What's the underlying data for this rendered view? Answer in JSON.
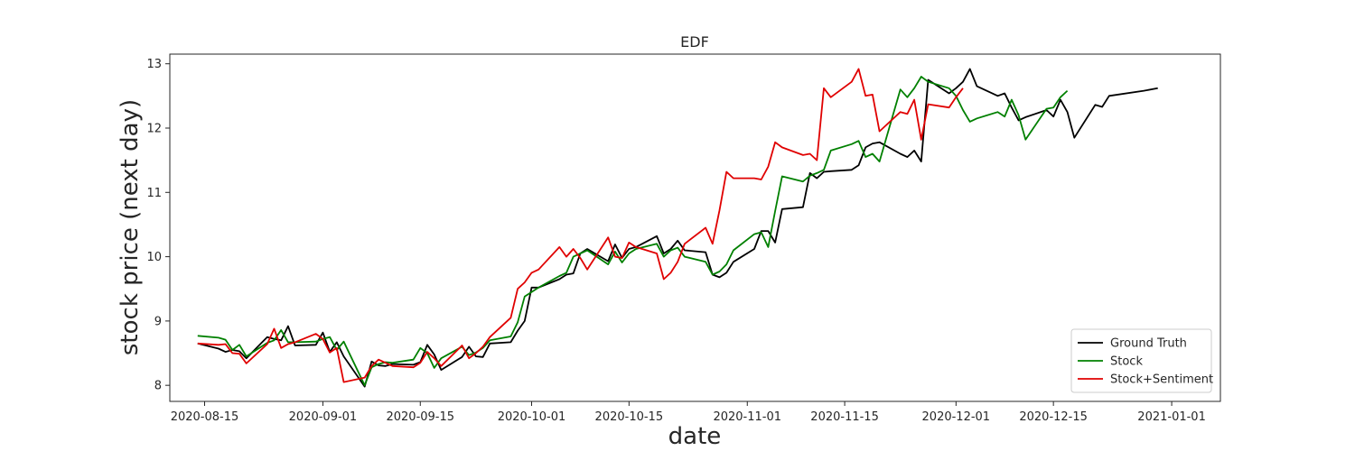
{
  "chart_data": {
    "type": "line",
    "title": "EDF",
    "xlabel": "date",
    "ylabel": "stock price (next day)",
    "xlim": [
      "2020-08-10",
      "2021-01-08"
    ],
    "ylim": [
      7.75,
      13.15
    ],
    "x_ticks": [
      "2020-08-15",
      "2020-09-01",
      "2020-09-15",
      "2020-10-01",
      "2020-10-15",
      "2020-11-01",
      "2020-11-15",
      "2020-12-01",
      "2020-12-15",
      "2021-01-01"
    ],
    "y_ticks": [
      8,
      9,
      10,
      11,
      12,
      13
    ],
    "grid": false,
    "legend_position": "bottom-right",
    "series": [
      {
        "name": "Ground Truth",
        "color": "#000000",
        "points": [
          [
            "2020-08-14",
            8.65
          ],
          [
            "2020-08-17",
            8.57
          ],
          [
            "2020-08-18",
            8.52
          ],
          [
            "2020-08-19",
            8.55
          ],
          [
            "2020-08-20",
            8.53
          ],
          [
            "2020-08-21",
            8.42
          ],
          [
            "2020-08-24",
            8.75
          ],
          [
            "2020-08-25",
            8.72
          ],
          [
            "2020-08-26",
            8.7
          ],
          [
            "2020-08-27",
            8.92
          ],
          [
            "2020-08-28",
            8.62
          ],
          [
            "2020-08-31",
            8.63
          ],
          [
            "2020-09-01",
            8.82
          ],
          [
            "2020-09-02",
            8.52
          ],
          [
            "2020-09-03",
            8.67
          ],
          [
            "2020-09-04",
            8.45
          ],
          [
            "2020-09-07",
            7.98
          ],
          [
            "2020-09-08",
            8.37
          ],
          [
            "2020-09-09",
            8.31
          ],
          [
            "2020-09-10",
            8.3
          ],
          [
            "2020-09-11",
            8.33
          ],
          [
            "2020-09-14",
            8.32
          ],
          [
            "2020-09-15",
            8.36
          ],
          [
            "2020-09-16",
            8.63
          ],
          [
            "2020-09-17",
            8.48
          ],
          [
            "2020-09-18",
            8.24
          ],
          [
            "2020-09-21",
            8.44
          ],
          [
            "2020-09-22",
            8.6
          ],
          [
            "2020-09-23",
            8.45
          ],
          [
            "2020-09-24",
            8.44
          ],
          [
            "2020-09-25",
            8.65
          ],
          [
            "2020-09-28",
            8.67
          ],
          [
            "2020-09-29",
            8.85
          ],
          [
            "2020-09-30",
            9.0
          ],
          [
            "2020-10-01",
            9.52
          ],
          [
            "2020-10-02",
            9.52
          ],
          [
            "2020-10-05",
            9.65
          ],
          [
            "2020-10-06",
            9.72
          ],
          [
            "2020-10-07",
            9.74
          ],
          [
            "2020-10-08",
            10.05
          ],
          [
            "2020-10-09",
            10.12
          ],
          [
            "2020-10-12",
            9.93
          ],
          [
            "2020-10-13",
            10.19
          ],
          [
            "2020-10-14",
            9.98
          ],
          [
            "2020-10-15",
            10.12
          ],
          [
            "2020-10-16",
            10.15
          ],
          [
            "2020-10-19",
            10.32
          ],
          [
            "2020-10-20",
            10.05
          ],
          [
            "2020-10-21",
            10.12
          ],
          [
            "2020-10-22",
            10.25
          ],
          [
            "2020-10-23",
            10.1
          ],
          [
            "2020-10-26",
            10.07
          ],
          [
            "2020-10-27",
            9.72
          ],
          [
            "2020-10-28",
            9.68
          ],
          [
            "2020-10-29",
            9.75
          ],
          [
            "2020-10-30",
            9.92
          ],
          [
            "2020-11-02",
            10.12
          ],
          [
            "2020-11-03",
            10.4
          ],
          [
            "2020-11-04",
            10.4
          ],
          [
            "2020-11-05",
            10.22
          ],
          [
            "2020-11-06",
            10.74
          ],
          [
            "2020-11-09",
            10.77
          ],
          [
            "2020-11-10",
            11.3
          ],
          [
            "2020-11-11",
            11.22
          ],
          [
            "2020-11-12",
            11.32
          ],
          [
            "2020-11-13",
            11.33
          ],
          [
            "2020-11-16",
            11.35
          ],
          [
            "2020-11-17",
            11.42
          ],
          [
            "2020-11-18",
            11.7
          ],
          [
            "2020-11-19",
            11.76
          ],
          [
            "2020-11-20",
            11.78
          ],
          [
            "2020-11-23",
            11.6
          ],
          [
            "2020-11-24",
            11.55
          ],
          [
            "2020-11-25",
            11.65
          ],
          [
            "2020-11-26",
            11.48
          ],
          [
            "2020-11-27",
            12.75
          ],
          [
            "2020-11-30",
            12.54
          ],
          [
            "2020-12-01",
            12.62
          ],
          [
            "2020-12-02",
            12.72
          ],
          [
            "2020-12-03",
            12.92
          ],
          [
            "2020-12-04",
            12.65
          ],
          [
            "2020-12-07",
            12.5
          ],
          [
            "2020-12-08",
            12.54
          ],
          [
            "2020-12-09",
            12.32
          ],
          [
            "2020-12-10",
            12.12
          ],
          [
            "2020-12-11",
            12.17
          ],
          [
            "2020-12-14",
            12.28
          ],
          [
            "2020-12-15",
            12.18
          ],
          [
            "2020-12-16",
            12.44
          ],
          [
            "2020-12-17",
            12.25
          ],
          [
            "2020-12-18",
            11.85
          ],
          [
            "2020-12-21",
            12.36
          ],
          [
            "2020-12-22",
            12.33
          ],
          [
            "2020-12-23",
            12.5
          ],
          [
            "2020-12-28",
            12.58
          ],
          [
            "2020-12-30",
            12.62
          ]
        ]
      },
      {
        "name": "Stock",
        "color": "#008000",
        "points": [
          [
            "2020-08-14",
            8.77
          ],
          [
            "2020-08-17",
            8.74
          ],
          [
            "2020-08-18",
            8.71
          ],
          [
            "2020-08-19",
            8.55
          ],
          [
            "2020-08-20",
            8.63
          ],
          [
            "2020-08-21",
            8.45
          ],
          [
            "2020-08-24",
            8.66
          ],
          [
            "2020-08-25",
            8.7
          ],
          [
            "2020-08-26",
            8.86
          ],
          [
            "2020-08-27",
            8.67
          ],
          [
            "2020-08-28",
            8.67
          ],
          [
            "2020-08-31",
            8.68
          ],
          [
            "2020-09-01",
            8.72
          ],
          [
            "2020-09-02",
            8.75
          ],
          [
            "2020-09-03",
            8.55
          ],
          [
            "2020-09-04",
            8.68
          ],
          [
            "2020-09-07",
            8.0
          ],
          [
            "2020-09-08",
            8.28
          ],
          [
            "2020-09-09",
            8.33
          ],
          [
            "2020-09-10",
            8.36
          ],
          [
            "2020-09-11",
            8.35
          ],
          [
            "2020-09-14",
            8.4
          ],
          [
            "2020-09-15",
            8.58
          ],
          [
            "2020-09-16",
            8.5
          ],
          [
            "2020-09-17",
            8.27
          ],
          [
            "2020-09-18",
            8.42
          ],
          [
            "2020-09-21",
            8.6
          ],
          [
            "2020-09-22",
            8.47
          ],
          [
            "2020-09-23",
            8.51
          ],
          [
            "2020-09-24",
            8.58
          ],
          [
            "2020-09-25",
            8.7
          ],
          [
            "2020-09-28",
            8.76
          ],
          [
            "2020-09-29",
            8.98
          ],
          [
            "2020-09-30",
            9.38
          ],
          [
            "2020-10-01",
            9.45
          ],
          [
            "2020-10-02",
            9.52
          ],
          [
            "2020-10-05",
            9.7
          ],
          [
            "2020-10-06",
            9.75
          ],
          [
            "2020-10-07",
            10.0
          ],
          [
            "2020-10-08",
            10.05
          ],
          [
            "2020-10-09",
            10.1
          ],
          [
            "2020-10-12",
            9.88
          ],
          [
            "2020-10-13",
            10.08
          ],
          [
            "2020-10-14",
            9.91
          ],
          [
            "2020-10-15",
            10.05
          ],
          [
            "2020-10-16",
            10.12
          ],
          [
            "2020-10-19",
            10.2
          ],
          [
            "2020-10-20",
            10.0
          ],
          [
            "2020-10-21",
            10.1
          ],
          [
            "2020-10-22",
            10.14
          ],
          [
            "2020-10-23",
            10.0
          ],
          [
            "2020-10-26",
            9.92
          ],
          [
            "2020-10-27",
            9.72
          ],
          [
            "2020-10-28",
            9.77
          ],
          [
            "2020-10-29",
            9.88
          ],
          [
            "2020-10-30",
            10.1
          ],
          [
            "2020-11-02",
            10.35
          ],
          [
            "2020-11-03",
            10.38
          ],
          [
            "2020-11-04",
            10.15
          ],
          [
            "2020-11-05",
            10.71
          ],
          [
            "2020-11-06",
            11.25
          ],
          [
            "2020-11-09",
            11.17
          ],
          [
            "2020-11-10",
            11.26
          ],
          [
            "2020-11-11",
            11.3
          ],
          [
            "2020-11-12",
            11.35
          ],
          [
            "2020-11-13",
            11.65
          ],
          [
            "2020-11-16",
            11.75
          ],
          [
            "2020-11-17",
            11.8
          ],
          [
            "2020-11-18",
            11.55
          ],
          [
            "2020-11-19",
            11.6
          ],
          [
            "2020-11-20",
            11.48
          ],
          [
            "2020-11-23",
            12.6
          ],
          [
            "2020-11-24",
            12.48
          ],
          [
            "2020-11-25",
            12.62
          ],
          [
            "2020-11-26",
            12.8
          ],
          [
            "2020-11-27",
            12.72
          ],
          [
            "2020-11-30",
            12.62
          ],
          [
            "2020-12-01",
            12.5
          ],
          [
            "2020-12-02",
            12.28
          ],
          [
            "2020-12-03",
            12.1
          ],
          [
            "2020-12-04",
            12.15
          ],
          [
            "2020-12-07",
            12.25
          ],
          [
            "2020-12-08",
            12.18
          ],
          [
            "2020-12-09",
            12.44
          ],
          [
            "2020-12-10",
            12.2
          ],
          [
            "2020-12-11",
            11.82
          ],
          [
            "2020-12-14",
            12.3
          ],
          [
            "2020-12-15",
            12.32
          ],
          [
            "2020-12-16",
            12.48
          ],
          [
            "2020-12-17",
            12.58
          ]
        ]
      },
      {
        "name": "Stock+Sentiment",
        "color": "#e00000",
        "points": [
          [
            "2020-08-14",
            8.65
          ],
          [
            "2020-08-17",
            8.63
          ],
          [
            "2020-08-18",
            8.64
          ],
          [
            "2020-08-19",
            8.5
          ],
          [
            "2020-08-20",
            8.49
          ],
          [
            "2020-08-21",
            8.34
          ],
          [
            "2020-08-24",
            8.64
          ],
          [
            "2020-08-25",
            8.88
          ],
          [
            "2020-08-26",
            8.58
          ],
          [
            "2020-08-27",
            8.64
          ],
          [
            "2020-08-28",
            8.67
          ],
          [
            "2020-08-31",
            8.8
          ],
          [
            "2020-09-01",
            8.72
          ],
          [
            "2020-09-02",
            8.51
          ],
          [
            "2020-09-03",
            8.58
          ],
          [
            "2020-09-04",
            8.05
          ],
          [
            "2020-09-07",
            8.12
          ],
          [
            "2020-09-08",
            8.3
          ],
          [
            "2020-09-09",
            8.4
          ],
          [
            "2020-09-10",
            8.35
          ],
          [
            "2020-09-11",
            8.3
          ],
          [
            "2020-09-14",
            8.28
          ],
          [
            "2020-09-15",
            8.35
          ],
          [
            "2020-09-16",
            8.52
          ],
          [
            "2020-09-17",
            8.42
          ],
          [
            "2020-09-18",
            8.3
          ],
          [
            "2020-09-21",
            8.62
          ],
          [
            "2020-09-22",
            8.42
          ],
          [
            "2020-09-23",
            8.5
          ],
          [
            "2020-09-24",
            8.6
          ],
          [
            "2020-09-25",
            8.75
          ],
          [
            "2020-09-28",
            9.05
          ],
          [
            "2020-09-29",
            9.5
          ],
          [
            "2020-09-30",
            9.6
          ],
          [
            "2020-10-01",
            9.75
          ],
          [
            "2020-10-02",
            9.8
          ],
          [
            "2020-10-05",
            10.15
          ],
          [
            "2020-10-06",
            10.0
          ],
          [
            "2020-10-07",
            10.12
          ],
          [
            "2020-10-08",
            9.98
          ],
          [
            "2020-10-09",
            9.8
          ],
          [
            "2020-10-12",
            10.3
          ],
          [
            "2020-10-13",
            10.0
          ],
          [
            "2020-10-14",
            9.98
          ],
          [
            "2020-10-15",
            10.22
          ],
          [
            "2020-10-16",
            10.15
          ],
          [
            "2020-10-19",
            10.05
          ],
          [
            "2020-10-20",
            9.65
          ],
          [
            "2020-10-21",
            9.75
          ],
          [
            "2020-10-22",
            9.92
          ],
          [
            "2020-10-23",
            10.2
          ],
          [
            "2020-10-26",
            10.45
          ],
          [
            "2020-10-27",
            10.2
          ],
          [
            "2020-10-28",
            10.72
          ],
          [
            "2020-10-29",
            11.32
          ],
          [
            "2020-10-30",
            11.22
          ],
          [
            "2020-11-02",
            11.22
          ],
          [
            "2020-11-03",
            11.2
          ],
          [
            "2020-11-04",
            11.4
          ],
          [
            "2020-11-05",
            11.78
          ],
          [
            "2020-11-06",
            11.7
          ],
          [
            "2020-11-09",
            11.58
          ],
          [
            "2020-11-10",
            11.6
          ],
          [
            "2020-11-11",
            11.5
          ],
          [
            "2020-11-12",
            12.62
          ],
          [
            "2020-11-13",
            12.48
          ],
          [
            "2020-11-16",
            12.72
          ],
          [
            "2020-11-17",
            12.92
          ],
          [
            "2020-11-18",
            12.5
          ],
          [
            "2020-11-19",
            12.52
          ],
          [
            "2020-11-20",
            11.95
          ],
          [
            "2020-11-23",
            12.25
          ],
          [
            "2020-11-24",
            12.22
          ],
          [
            "2020-11-25",
            12.44
          ],
          [
            "2020-11-26",
            11.82
          ],
          [
            "2020-11-27",
            12.37
          ],
          [
            "2020-11-30",
            12.32
          ],
          [
            "2020-12-01",
            12.48
          ],
          [
            "2020-12-02",
            12.62
          ]
        ]
      }
    ]
  }
}
